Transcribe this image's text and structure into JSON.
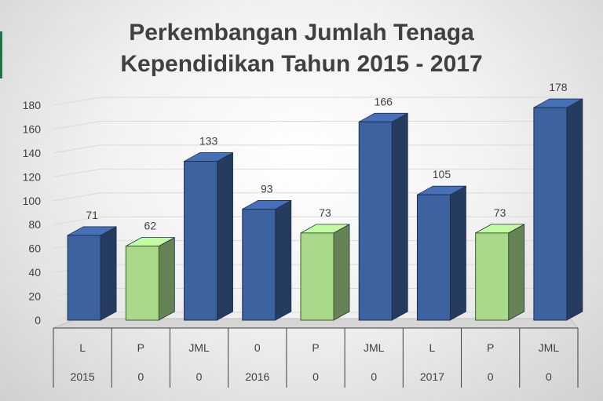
{
  "title_line1": "Perkembangan Jumlah Tenaga",
  "title_line2": "Kependidikan Tahun 2015 - 2017",
  "chart_data": {
    "type": "bar",
    "title": "Perkembangan Jumlah Tenaga Kependidikan Tahun 2015 - 2017",
    "ylim": [
      0,
      180
    ],
    "yticks": [
      0,
      20,
      40,
      60,
      80,
      100,
      120,
      140,
      160,
      180
    ],
    "grid": true,
    "categories": [
      {
        "level1": "L",
        "level2": "2015"
      },
      {
        "level1": "P",
        "level2": "0"
      },
      {
        "level1": "JML",
        "level2": "0"
      },
      {
        "level1": "0",
        "level2": "2016"
      },
      {
        "level1": "P",
        "level2": "0"
      },
      {
        "level1": "JML",
        "level2": "0"
      },
      {
        "level1": "L",
        "level2": "2017"
      },
      {
        "level1": "P",
        "level2": "0"
      },
      {
        "level1": "JML",
        "level2": "0"
      }
    ],
    "values": [
      71,
      62,
      133,
      93,
      73,
      166,
      105,
      73,
      178
    ],
    "data_labels": [
      "71",
      "62",
      "133",
      "93",
      "73",
      "166",
      "105",
      "73",
      "178"
    ],
    "bar_colors": [
      "#2e4f86",
      "#a8d88a",
      "#2e4f86",
      "#2e4f86",
      "#a8d88a",
      "#2e4f86",
      "#2e4f86",
      "#a8d88a",
      "#2e4f86"
    ]
  },
  "colors": {
    "blue_front": "#3d62a0",
    "green_front": "#a9da8c",
    "title": "#404040"
  }
}
